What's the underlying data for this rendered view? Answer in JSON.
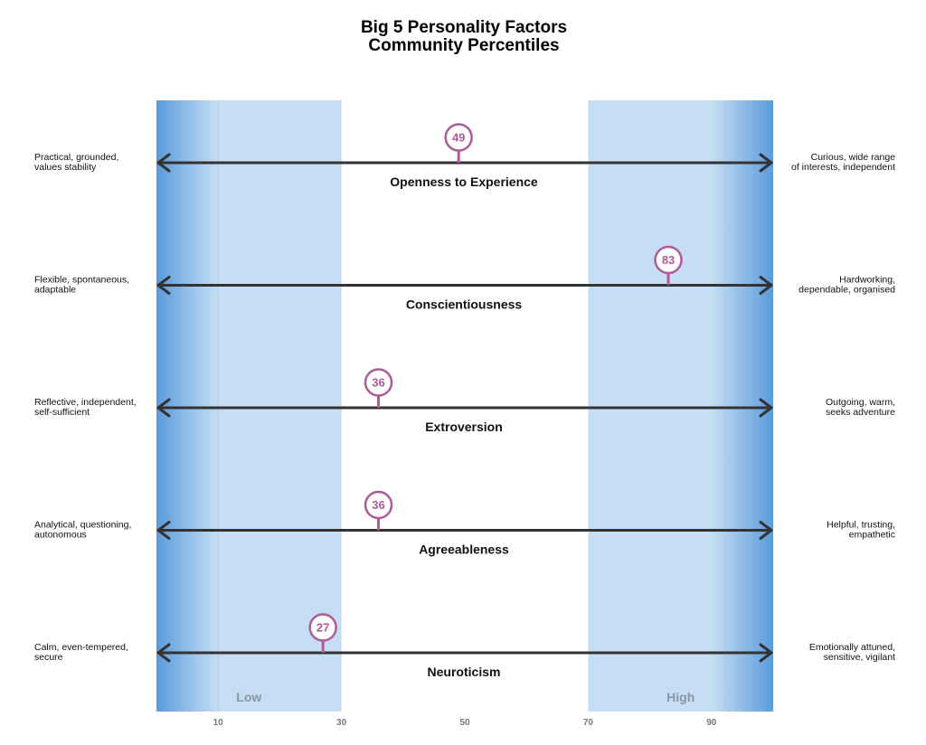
{
  "chart_data": {
    "type": "scale",
    "title": [
      "Big 5 Personality Factors",
      "Community Percentiles"
    ],
    "xlim": [
      0,
      100
    ],
    "x_ticks": [
      10,
      30,
      50,
      70,
      90
    ],
    "bands": [
      {
        "label": "Low",
        "range": [
          0,
          30
        ]
      },
      {
        "label": "High",
        "range": [
          70,
          100
        ]
      }
    ],
    "factors": [
      {
        "name": "Openness to Experience",
        "value": 49,
        "low": [
          "Practical, grounded,",
          "values stability"
        ],
        "high": [
          "Curious, wide range",
          "of interests, independent"
        ]
      },
      {
        "name": "Conscientiousness",
        "value": 83,
        "low": [
          "Flexible, spontaneous,",
          "adaptable"
        ],
        "high": [
          "Hardworking,",
          "dependable, organised"
        ]
      },
      {
        "name": "Extroversion",
        "value": 36,
        "low": [
          "Reflective, independent,",
          "self-sufficient"
        ],
        "high": [
          "Outgoing, warm,",
          "seeks adventure"
        ]
      },
      {
        "name": "Agreeableness",
        "value": 36,
        "low": [
          "Analytical, questioning,",
          "autonomous"
        ],
        "high": [
          "Helpful, trusting,",
          "empathetic"
        ]
      },
      {
        "name": "Neuroticism",
        "value": 27,
        "low": [
          "Calm, even-tempered,",
          "secure"
        ],
        "high": [
          "Emotionally attuned,",
          "sensitive, vigilant"
        ]
      }
    ],
    "colors": {
      "band": "#c6def3",
      "band_edge": "#5b9bdb",
      "axis_line": "#333333",
      "marker": "#b05a98"
    }
  }
}
